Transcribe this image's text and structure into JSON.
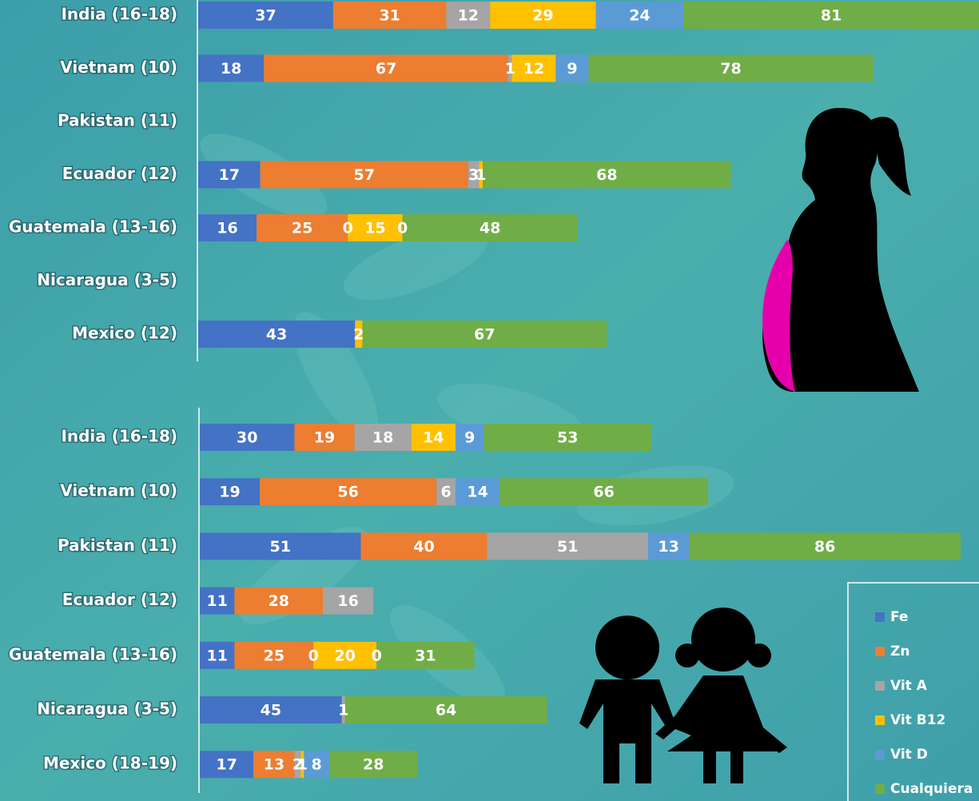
{
  "chart_data": [
    {
      "type": "bar",
      "orientation": "horizontal",
      "stacked": true,
      "categories": [
        "India (16-18)",
        "Vietnam (10)",
        "Pakistan (11)",
        "Ecuador (12)",
        "Guatemala (13-16)",
        "Nicaragua (3-5)",
        "Mexico (12)"
      ],
      "series": [
        {
          "color": "#4472c4",
          "values": [
            37,
            18,
            null,
            17,
            16,
            null,
            43
          ]
        },
        {
          "color": "#ed7d31",
          "values": [
            31,
            67,
            null,
            57,
            25,
            null,
            null
          ]
        },
        {
          "color": "#a5a5a5",
          "values": [
            12,
            1,
            null,
            3,
            0,
            null,
            null
          ]
        },
        {
          "color": "#ffc000",
          "values": [
            29,
            12,
            null,
            1,
            15,
            null,
            2
          ]
        },
        {
          "color": "#5b9bd5",
          "values": [
            24,
            9,
            null,
            null,
            0,
            null,
            null
          ]
        },
        {
          "color": "#70ad47",
          "values": [
            81,
            78,
            null,
            68,
            48,
            null,
            67
          ]
        }
      ]
    },
    {
      "type": "bar",
      "orientation": "horizontal",
      "stacked": true,
      "categories": [
        "India (16-18)",
        "Vietnam (10)",
        "Pakistan (11)",
        "Ecuador (12)",
        "Guatemala (13-16)",
        "Nicaragua (3-5)",
        "Mexico (18-19)"
      ],
      "series": [
        {
          "name": "Fe",
          "color": "#4472c4",
          "values": [
            30,
            19,
            51,
            11,
            11,
            45,
            17
          ]
        },
        {
          "name": "Zn",
          "color": "#ed7d31",
          "values": [
            19,
            56,
            40,
            28,
            25,
            null,
            13
          ]
        },
        {
          "name": "Vit A",
          "color": "#a5a5a5",
          "values": [
            18,
            6,
            51,
            16,
            0,
            1,
            2
          ]
        },
        {
          "name": "Vit B12",
          "color": "#ffc000",
          "values": [
            14,
            null,
            null,
            null,
            20,
            null,
            1
          ]
        },
        {
          "name": "Vit D",
          "color": "#5b9bd5",
          "values": [
            9,
            14,
            13,
            null,
            0,
            null,
            8
          ]
        },
        {
          "name": "Cualquiera",
          "color": "#70ad47",
          "values": [
            53,
            66,
            86,
            null,
            31,
            64,
            28
          ]
        }
      ]
    }
  ]
}
